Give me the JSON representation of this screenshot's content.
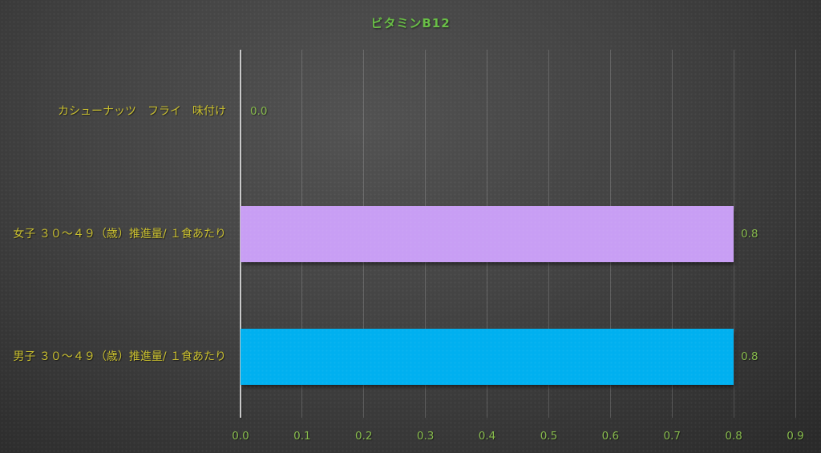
{
  "page": {
    "title": "ビタミンB12"
  },
  "colors": {
    "title_green": "#68BE45",
    "tick_green": "#87BB4C",
    "category_yellow": "#C9BF2E",
    "axis_line": "#C9C9C9",
    "bar_purple": "#C89EF4",
    "bar_cyan": "#00B0F0",
    "background_center": "#525252",
    "background_edge": "#242424"
  },
  "chart_data": {
    "type": "bar",
    "orientation": "horizontal",
    "title": "ビタミンB12",
    "categories": [
      "カシューナッツ　フライ　味付け",
      "女子 ３０～４９（歳）推進量/ １食あたり",
      "男子 ３０～４９（歳）推進量/ １食あたり"
    ],
    "values": [
      0.0,
      0.8,
      0.8
    ],
    "value_labels": [
      "0.0",
      "0.8",
      "0.8"
    ],
    "bar_colors": [
      null,
      "#C89EF4",
      "#00B0F0"
    ],
    "xlim": [
      0.0,
      0.9
    ],
    "x_ticks": [
      0.0,
      0.1,
      0.2,
      0.3,
      0.4,
      0.5,
      0.6,
      0.7,
      0.8,
      0.9
    ],
    "x_tick_labels": [
      "0.0",
      "0.1",
      "0.2",
      "0.3",
      "0.4",
      "0.5",
      "0.6",
      "0.7",
      "0.8",
      "0.9"
    ],
    "xlabel": "",
    "ylabel": "",
    "grid": true,
    "legend": false
  }
}
